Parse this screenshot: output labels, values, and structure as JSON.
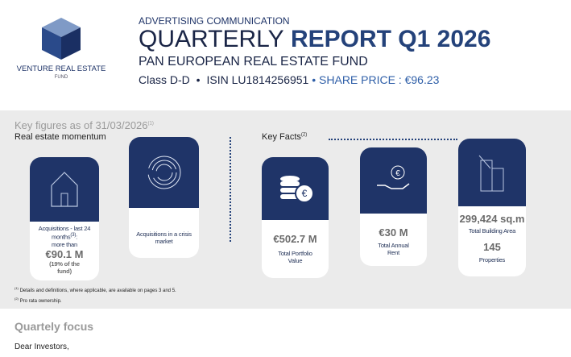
{
  "logo": {
    "name": "VENTURE REAL ESTATE",
    "sub": "FUND"
  },
  "header": {
    "kicker": "ADVERTISING COMMUNICATION",
    "title_light": "QUARTERLY",
    "title_bold": "REPORT Q1 2026",
    "subtitle": "PAN EUROPEAN REAL ESTATE FUND",
    "class_line": [
      "Class D-D",
      "•",
      "ISIN LU1814256951",
      "•",
      "SHARE PRICE : €96.23"
    ]
  },
  "key_figures": {
    "title": "Key figures as of 31/03/2026",
    "title_note": "(1)",
    "left_heading": "Real estate momentum",
    "right_heading": "Key Facts",
    "right_note": "(2)",
    "cards": [
      {
        "label": "Acquisitions - last 24 months",
        "label_note": "(3)",
        "label_end": ":",
        "prefix": "more than",
        "value": "€90.1 M",
        "note": "(19% of the fund)"
      },
      {
        "label": "Acquisitions in a crisis market"
      },
      {
        "value": "€502.7 M",
        "label": "Total Portfolio Value"
      },
      {
        "value": "€30 M",
        "label": "Total Annual Rent"
      },
      {
        "value": "299,424 sq.m",
        "label": "Total Building Area",
        "value2": "145",
        "label2": "Properties"
      }
    ],
    "footnotes": [
      {
        "mark": "(1)",
        "text": "Details and definitions, where applicable, are available on pages 3 and 5."
      },
      {
        "mark": "(2)",
        "text": "Pro rata ownership."
      }
    ]
  },
  "focus": {
    "title": "Quartely focus",
    "greeting": "Dear Investors,"
  }
}
